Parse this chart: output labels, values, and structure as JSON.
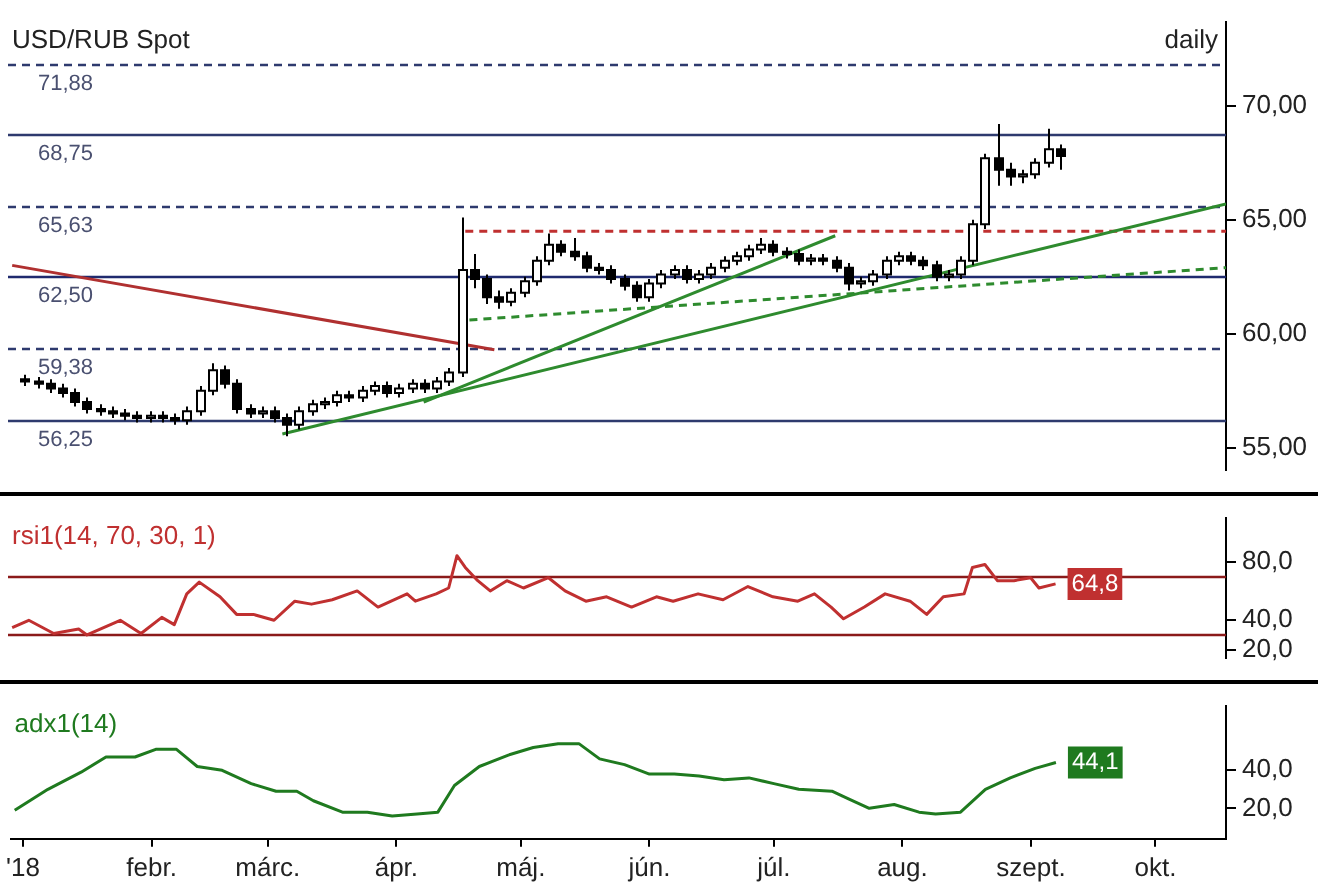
{
  "chart_data": [
    {
      "type": "candlestick",
      "title": "USD/RUB Spot",
      "subtitle": "daily",
      "colors": [
        "#000000",
        "#000000",
        "#000000",
        "#000000",
        "#000000",
        "#000000",
        "#000000",
        "#000000",
        "#000000",
        "#000000",
        "#ffffff",
        "#000000",
        "#000000",
        "#ffffff",
        "#ffffff",
        "#ffffff",
        "#000000",
        "#000000",
        "#000000",
        "#ffffff",
        "#000000",
        "#000000",
        "#ffffff",
        "#ffffff",
        "#ffffff",
        "#ffffff",
        "#000000",
        "#ffffff",
        "#ffffff",
        "#000000",
        "#ffffff",
        "#ffffff",
        "#000000",
        "#ffffff",
        "#ffffff",
        "#ffffff",
        "#000000",
        "#000000",
        "#000000",
        "#ffffff",
        "#ffffff",
        "#ffffff",
        "#ffffff",
        "#000000",
        "#000000",
        "#000000",
        "#000000",
        "#000000",
        "#000000",
        "#000000",
        "#ffffff",
        "#ffffff",
        "#ffffff",
        "#000000",
        "#ffffff",
        "#ffffff",
        "#ffffff",
        "#ffffff",
        "#ffffff",
        "#ffffff",
        "#000000",
        "#000000",
        "#000000",
        "#ffffff",
        "#000000",
        "#000000",
        "#000000",
        "#ffffff",
        "#ffffff",
        "#ffffff",
        "#ffffff",
        "#000000",
        "#000000",
        "#000000",
        "#ffffff",
        "#ffffff",
        "#ffffff",
        "#ffffff",
        "#000000",
        "#000000",
        "#ffffff",
        "#ffffff",
        "#ffffff",
        "#000000"
      ],
      "x": [
        "2018-01-02",
        "2018-01-05",
        "2018-01-08",
        "2018-01-11",
        "2018-01-14",
        "2018-01-17",
        "2018-01-20",
        "2018-01-23",
        "2018-01-26",
        "2018-01-29",
        "2018-02-01",
        "2018-02-04",
        "2018-02-07",
        "2018-02-10",
        "2018-02-13",
        "2018-02-16",
        "2018-02-19",
        "2018-02-22",
        "2018-02-25",
        "2018-02-28",
        "2018-03-03",
        "2018-03-06",
        "2018-03-09",
        "2018-03-12",
        "2018-03-15",
        "2018-03-18",
        "2018-03-21",
        "2018-03-24",
        "2018-03-27",
        "2018-03-30",
        "2018-04-02",
        "2018-04-05",
        "2018-04-08",
        "2018-04-11",
        "2018-04-14",
        "2018-04-17",
        "2018-04-20",
        "2018-04-23",
        "2018-04-26",
        "2018-04-29",
        "2018-05-02",
        "2018-05-05",
        "2018-05-08",
        "2018-05-11",
        "2018-05-14",
        "2018-05-17",
        "2018-05-20",
        "2018-05-23",
        "2018-05-26",
        "2018-05-29",
        "2018-06-01",
        "2018-06-04",
        "2018-06-07",
        "2018-06-10",
        "2018-06-13",
        "2018-06-16",
        "2018-06-19",
        "2018-06-22",
        "2018-06-25",
        "2018-06-28",
        "2018-07-01",
        "2018-07-04",
        "2018-07-07",
        "2018-07-10",
        "2018-07-13",
        "2018-07-16",
        "2018-07-19",
        "2018-07-22",
        "2018-07-25",
        "2018-07-28",
        "2018-07-31",
        "2018-08-03",
        "2018-08-06",
        "2018-08-09",
        "2018-08-12",
        "2018-08-15",
        "2018-08-18",
        "2018-08-21",
        "2018-08-24",
        "2018-08-27",
        "2018-08-30",
        "2018-09-02",
        "2018-09-05",
        "2018-09-08"
      ],
      "ohlc": [
        [
          58.0,
          58.2,
          57.7,
          57.9
        ],
        [
          57.9,
          58.1,
          57.6,
          57.8
        ],
        [
          57.8,
          58.0,
          57.4,
          57.6
        ],
        [
          57.6,
          57.8,
          57.2,
          57.4
        ],
        [
          57.4,
          57.6,
          56.8,
          57.0
        ],
        [
          57.0,
          57.2,
          56.5,
          56.7
        ],
        [
          56.7,
          56.9,
          56.4,
          56.6
        ],
        [
          56.6,
          56.8,
          56.3,
          56.5
        ],
        [
          56.5,
          56.7,
          56.2,
          56.4
        ],
        [
          56.4,
          56.6,
          56.1,
          56.3
        ],
        [
          56.3,
          56.6,
          56.1,
          56.4
        ],
        [
          56.4,
          56.6,
          56.1,
          56.3
        ],
        [
          56.3,
          56.5,
          56.0,
          56.2
        ],
        [
          56.2,
          56.8,
          56.0,
          56.6
        ],
        [
          56.6,
          57.7,
          56.4,
          57.5
        ],
        [
          57.5,
          58.7,
          57.3,
          58.4
        ],
        [
          58.4,
          58.6,
          57.6,
          57.8
        ],
        [
          57.8,
          58.0,
          56.5,
          56.7
        ],
        [
          56.7,
          56.9,
          56.3,
          56.5
        ],
        [
          56.5,
          56.8,
          56.3,
          56.6
        ],
        [
          56.6,
          56.8,
          56.1,
          56.3
        ],
        [
          56.3,
          56.5,
          55.5,
          56.0
        ],
        [
          56.0,
          56.8,
          55.8,
          56.6
        ],
        [
          56.6,
          57.1,
          56.4,
          56.9
        ],
        [
          56.9,
          57.2,
          56.7,
          57.0
        ],
        [
          57.0,
          57.5,
          56.8,
          57.3
        ],
        [
          57.3,
          57.5,
          57.0,
          57.2
        ],
        [
          57.2,
          57.7,
          57.0,
          57.5
        ],
        [
          57.5,
          57.9,
          57.3,
          57.7
        ],
        [
          57.7,
          57.9,
          57.2,
          57.4
        ],
        [
          57.4,
          57.8,
          57.2,
          57.6
        ],
        [
          57.6,
          58.0,
          57.4,
          57.8
        ],
        [
          57.8,
          58.0,
          57.4,
          57.6
        ],
        [
          57.6,
          58.1,
          57.4,
          57.9
        ],
        [
          57.9,
          58.5,
          57.7,
          58.3
        ],
        [
          58.3,
          65.1,
          58.1,
          62.8
        ],
        [
          62.8,
          63.5,
          62.0,
          62.4
        ],
        [
          62.4,
          62.6,
          61.3,
          61.6
        ],
        [
          61.6,
          61.9,
          61.1,
          61.4
        ],
        [
          61.4,
          62.0,
          61.2,
          61.8
        ],
        [
          61.8,
          62.5,
          61.6,
          62.3
        ],
        [
          62.3,
          63.4,
          62.1,
          63.2
        ],
        [
          63.2,
          64.4,
          63.0,
          63.9
        ],
        [
          63.9,
          64.1,
          63.4,
          63.6
        ],
        [
          63.6,
          64.2,
          63.2,
          63.4
        ],
        [
          63.4,
          63.6,
          62.7,
          62.9
        ],
        [
          62.9,
          63.1,
          62.6,
          62.8
        ],
        [
          62.8,
          63.0,
          62.2,
          62.4
        ],
        [
          62.4,
          62.6,
          61.9,
          62.1
        ],
        [
          62.1,
          62.3,
          61.4,
          61.6
        ],
        [
          61.6,
          62.4,
          61.4,
          62.2
        ],
        [
          62.2,
          62.8,
          62.0,
          62.6
        ],
        [
          62.6,
          63.0,
          62.4,
          62.8
        ],
        [
          62.8,
          63.0,
          62.2,
          62.4
        ],
        [
          62.4,
          62.8,
          62.2,
          62.6
        ],
        [
          62.6,
          63.1,
          62.4,
          62.9
        ],
        [
          62.9,
          63.4,
          62.7,
          63.2
        ],
        [
          63.2,
          63.6,
          63.0,
          63.4
        ],
        [
          63.4,
          63.9,
          63.2,
          63.7
        ],
        [
          63.7,
          64.2,
          63.5,
          63.9
        ],
        [
          63.9,
          64.1,
          63.4,
          63.6
        ],
        [
          63.6,
          63.8,
          63.3,
          63.5
        ],
        [
          63.5,
          63.7,
          63.0,
          63.2
        ],
        [
          63.2,
          63.5,
          63.0,
          63.3
        ],
        [
          63.3,
          63.5,
          63.0,
          63.2
        ],
        [
          63.2,
          63.4,
          62.7,
          62.9
        ],
        [
          62.9,
          63.1,
          61.9,
          62.2
        ],
        [
          62.2,
          62.5,
          62.0,
          62.3
        ],
        [
          62.3,
          62.8,
          62.1,
          62.6
        ],
        [
          62.6,
          63.4,
          62.4,
          63.2
        ],
        [
          63.2,
          63.6,
          63.0,
          63.4
        ],
        [
          63.4,
          63.6,
          63.0,
          63.2
        ],
        [
          63.2,
          63.4,
          62.8,
          63.0
        ],
        [
          63.0,
          63.2,
          62.3,
          62.5
        ],
        [
          62.5,
          62.8,
          62.3,
          62.6
        ],
        [
          62.6,
          63.4,
          62.4,
          63.2
        ],
        [
          63.2,
          65.0,
          63.0,
          64.8
        ],
        [
          64.8,
          67.9,
          64.6,
          67.7
        ],
        [
          67.7,
          69.2,
          66.5,
          67.2
        ],
        [
          67.2,
          67.5,
          66.5,
          66.9
        ],
        [
          66.9,
          67.2,
          66.6,
          67.0
        ],
        [
          67.0,
          67.7,
          66.8,
          67.5
        ],
        [
          67.5,
          69.0,
          67.3,
          68.1
        ],
        [
          68.1,
          68.3,
          67.2,
          67.8
        ]
      ],
      "series": [
        {
          "type": "line",
          "color": "#b03030",
          "x": [
            "2017-12-30",
            "2018-04-25"
          ],
          "values": [
            63.0,
            59.3
          ]
        },
        {
          "type": "line",
          "color": "#2e8b2e",
          "x": [
            "2018-04-08",
            "2018-07-16"
          ],
          "values": [
            57.0,
            64.3
          ]
        },
        {
          "type": "line",
          "color": "#2e8b2e",
          "x": [
            "2018-03-05",
            "2018-10-18"
          ],
          "values": [
            55.6,
            65.7
          ]
        },
        {
          "type": "line",
          "color": "#2e8b2e",
          "line_style": "dashed",
          "x": [
            "2018-04-19",
            "2018-10-18"
          ],
          "values": [
            60.6,
            62.9
          ]
        },
        {
          "type": "line",
          "color": "#c03030",
          "line_style": "dashed",
          "x": [
            "2018-04-18",
            "2018-10-18"
          ],
          "values": [
            64.5,
            64.5
          ]
        }
      ],
      "ref_lines": [
        {
          "axis": "y",
          "value": 71.88,
          "label": "71,88",
          "color": "#2e3a6e",
          "line_style": "dashed"
        },
        {
          "axis": "y",
          "value": 68.75,
          "label": "68,75",
          "color": "#2e3a6e"
        },
        {
          "axis": "y",
          "value": 65.63,
          "label": "65,63",
          "color": "#2e3a6e",
          "line_style": "dashed"
        },
        {
          "axis": "y",
          "value": 62.5,
          "label": "62,50",
          "color": "#1f2a6e"
        },
        {
          "axis": "y",
          "value": 59.38,
          "label": "59,38",
          "color": "#2e3a6e",
          "line_style": "dashed"
        },
        {
          "axis": "y",
          "value": 56.25,
          "label": "56,25",
          "color": "#2e3a6e"
        }
      ],
      "xlim": [
        "2017-12-29",
        "2018-10-18"
      ],
      "ylim": [
        54,
        73.7
      ],
      "yticks": [
        {
          "value": 55,
          "label": "55,00"
        },
        {
          "value": 60,
          "label": "60,00"
        },
        {
          "value": 65,
          "label": "65,00"
        },
        {
          "value": 70,
          "label": "70,00"
        }
      ],
      "tick_labels": "y"
    },
    {
      "type": "line",
      "title": "rsi1(14, 70, 30, 1)",
      "series": [
        {
          "type": "line",
          "color": "#c03030",
          "x": [
            "2017-12-30",
            "2018-01-03",
            "2018-01-09",
            "2018-01-15",
            "2018-01-17",
            "2018-01-25",
            "2018-01-30",
            "2018-02-04",
            "2018-02-07",
            "2018-02-10",
            "2018-02-13",
            "2018-02-18",
            "2018-02-22",
            "2018-02-26",
            "2018-03-03",
            "2018-03-08",
            "2018-03-12",
            "2018-03-17",
            "2018-03-23",
            "2018-03-28",
            "2018-04-04",
            "2018-04-06",
            "2018-04-11",
            "2018-04-14",
            "2018-04-16",
            "2018-04-18",
            "2018-04-21",
            "2018-04-24",
            "2018-04-28",
            "2018-05-02",
            "2018-05-08",
            "2018-05-12",
            "2018-05-17",
            "2018-05-22",
            "2018-05-28",
            "2018-06-03",
            "2018-06-07",
            "2018-06-13",
            "2018-06-19",
            "2018-06-25",
            "2018-07-01",
            "2018-07-07",
            "2018-07-11",
            "2018-07-15",
            "2018-07-18",
            "2018-07-23",
            "2018-07-28",
            "2018-08-03",
            "2018-08-07",
            "2018-08-11",
            "2018-08-16",
            "2018-08-18",
            "2018-08-21",
            "2018-08-24",
            "2018-08-28",
            "2018-09-01",
            "2018-09-03",
            "2018-09-07"
          ],
          "values": [
            35,
            40,
            31,
            34,
            30,
            40,
            31,
            42,
            37,
            58,
            66,
            56,
            44,
            44,
            40,
            53,
            51,
            54,
            60,
            49,
            58,
            53,
            58,
            62,
            84,
            76,
            67,
            60,
            67,
            62,
            69,
            60,
            53,
            56,
            49,
            56,
            53,
            58,
            54,
            63,
            56,
            53,
            58,
            49,
            41,
            49,
            58,
            53,
            44,
            56,
            58,
            76,
            78,
            67,
            67,
            69,
            62,
            64.8
          ]
        }
      ],
      "ref_lines": [
        {
          "axis": "y",
          "value": 70,
          "color": "#8b1a1a"
        },
        {
          "axis": "y",
          "value": 30,
          "color": "#8b1a1a"
        }
      ],
      "annotations": [
        "64,8"
      ],
      "xlim": [
        "2017-12-29",
        "2018-10-18"
      ],
      "ylim": [
        14,
        110
      ],
      "yticks": [
        {
          "value": 20,
          "label": "20,0"
        },
        {
          "value": 40,
          "label": "40,0"
        },
        {
          "value": 80,
          "label": "80,0"
        }
      ],
      "tick_labels": "y"
    },
    {
      "type": "line",
      "title": "adx1(14)",
      "series": [
        {
          "type": "line",
          "color": "#1f7a1f",
          "x": [
            "2017-12-30",
            "2018-01-07",
            "2018-01-15",
            "2018-01-21",
            "2018-01-28",
            "2018-02-02",
            "2018-02-07",
            "2018-02-12",
            "2018-02-18",
            "2018-02-25",
            "2018-03-03",
            "2018-03-08",
            "2018-03-12",
            "2018-03-19",
            "2018-03-25",
            "2018-03-31",
            "2018-04-06",
            "2018-04-11",
            "2018-04-15",
            "2018-04-21",
            "2018-04-28",
            "2018-05-04",
            "2018-05-10",
            "2018-05-15",
            "2018-05-20",
            "2018-05-26",
            "2018-06-01",
            "2018-06-07",
            "2018-06-13",
            "2018-06-19",
            "2018-06-25",
            "2018-07-01",
            "2018-07-07",
            "2018-07-15",
            "2018-07-19",
            "2018-07-24",
            "2018-07-30",
            "2018-08-05",
            "2018-08-09",
            "2018-08-15",
            "2018-08-21",
            "2018-08-27",
            "2018-09-02",
            "2018-09-07"
          ],
          "values": [
            19,
            30,
            39,
            47,
            47,
            51,
            51,
            42,
            40,
            33,
            29,
            29,
            24,
            18,
            18,
            16,
            17,
            18,
            32,
            42,
            48,
            52,
            54,
            54,
            46,
            43,
            38,
            38,
            37,
            35,
            36,
            33,
            30,
            29,
            25,
            20,
            22,
            18,
            17,
            18,
            30,
            36,
            41,
            44.1
          ]
        }
      ],
      "annotations": [
        "44,1"
      ],
      "xlim": [
        "2017-12-29",
        "2018-10-18"
      ],
      "ylim": [
        4,
        74
      ],
      "yticks": [
        {
          "value": 20,
          "label": "20,0"
        },
        {
          "value": 40,
          "label": "40,0"
        }
      ],
      "xticks": [
        {
          "value": "2018-01-01",
          "label": "'18"
        },
        {
          "value": "2018-02-01",
          "label": "febr."
        },
        {
          "value": "2018-03-01",
          "label": "márc."
        },
        {
          "value": "2018-04-01",
          "label": "ápr."
        },
        {
          "value": "2018-05-01",
          "label": "máj."
        },
        {
          "value": "2018-06-01",
          "label": "jún."
        },
        {
          "value": "2018-07-01",
          "label": "júl."
        },
        {
          "value": "2018-08-01",
          "label": "aug."
        },
        {
          "value": "2018-09-01",
          "label": "szept."
        },
        {
          "value": "2018-10-01",
          "label": "okt."
        }
      ]
    }
  ]
}
